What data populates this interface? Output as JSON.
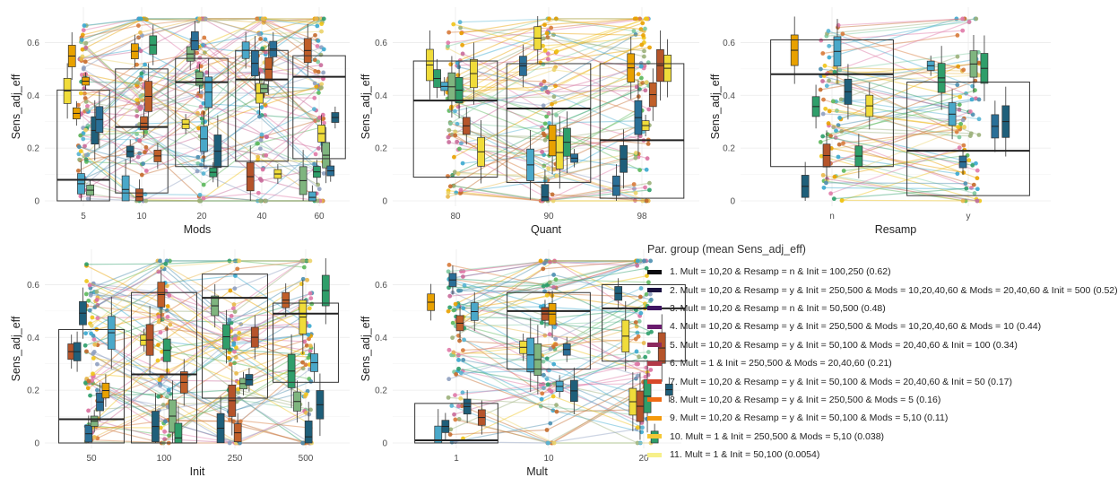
{
  "chart_data": [
    {
      "type": "boxplot-with-lines",
      "xlabel": "Mods",
      "ylabel": "Sens_adj_eff",
      "categories": [
        "5",
        "10",
        "20",
        "40",
        "60"
      ],
      "ylim": [
        0,
        0.7
      ],
      "yticks": [
        0,
        0.2,
        0.4,
        0.6
      ],
      "overall_boxes": [
        {
          "x": "5",
          "q1": 0.0,
          "median": 0.08,
          "q3": 0.42
        },
        {
          "x": "10",
          "q1": 0.03,
          "median": 0.28,
          "q3": 0.5
        },
        {
          "x": "20",
          "q1": 0.13,
          "median": 0.45,
          "q3": 0.54
        },
        {
          "x": "40",
          "q1": 0.15,
          "median": 0.46,
          "q3": 0.57
        },
        {
          "x": "60",
          "q1": 0.16,
          "median": 0.47,
          "q3": 0.55
        }
      ]
    },
    {
      "type": "boxplot-with-lines",
      "xlabel": "Quant",
      "ylabel": "Sens_adj_eff",
      "categories": [
        "80",
        "90",
        "98"
      ],
      "ylim": [
        0,
        0.7
      ],
      "yticks": [
        0,
        0.2,
        0.4,
        0.6
      ],
      "overall_boxes": [
        {
          "x": "80",
          "q1": 0.09,
          "median": 0.38,
          "q3": 0.53
        },
        {
          "x": "90",
          "q1": 0.07,
          "median": 0.35,
          "q3": 0.52
        },
        {
          "x": "98",
          "q1": 0.01,
          "median": 0.23,
          "q3": 0.52
        }
      ]
    },
    {
      "type": "boxplot-with-lines",
      "xlabel": "Resamp",
      "ylabel": "Sens_adj_eff",
      "categories": [
        "n",
        "y"
      ],
      "ylim": [
        0,
        0.7
      ],
      "yticks": [
        0,
        0.2,
        0.4,
        0.6
      ],
      "overall_boxes": [
        {
          "x": "n",
          "q1": 0.13,
          "median": 0.48,
          "q3": 0.61
        },
        {
          "x": "y",
          "q1": 0.02,
          "median": 0.19,
          "q3": 0.45
        }
      ]
    },
    {
      "type": "boxplot-with-lines",
      "xlabel": "Init",
      "ylabel": "Sens_adj_eff",
      "categories": [
        "50",
        "100",
        "250",
        "500"
      ],
      "ylim": [
        0,
        0.7
      ],
      "yticks": [
        0,
        0.2,
        0.4,
        0.6
      ],
      "overall_boxes": [
        {
          "x": "50",
          "q1": 0.0,
          "median": 0.09,
          "q3": 0.43
        },
        {
          "x": "100",
          "q1": 0.0,
          "median": 0.26,
          "q3": 0.57
        },
        {
          "x": "250",
          "q1": 0.17,
          "median": 0.55,
          "q3": 0.64
        },
        {
          "x": "500",
          "q1": 0.23,
          "median": 0.49,
          "q3": 0.53
        }
      ]
    },
    {
      "type": "boxplot-with-lines",
      "xlabel": "Mult",
      "ylabel": "Sens_adj_eff",
      "categories": [
        "1",
        "10",
        "20"
      ],
      "ylim": [
        0,
        0.7
      ],
      "yticks": [
        0,
        0.2,
        0.4,
        0.6
      ],
      "overall_boxes": [
        {
          "x": "1",
          "q1": 0.0,
          "median": 0.01,
          "q3": 0.15
        },
        {
          "x": "10",
          "q1": 0.28,
          "median": 0.5,
          "q3": 0.57
        },
        {
          "x": "20",
          "q1": 0.31,
          "median": 0.51,
          "q3": 0.6
        }
      ]
    }
  ],
  "legend": {
    "title": "Par. group (mean Sens_adj_eff)",
    "items": [
      {
        "label": "1. Mult = 10,20 & Resamp = n & Init = 100,250 (0.62)",
        "color": "#0a0a0f",
        "mean": 0.62
      },
      {
        "label": "2. Mult = 10,20 & Resamp = y & Init = 250,500 & Mods = 10,20,40,60 & Mods = 20,40,60 & Init = 500 (0.52)",
        "color": "#1b1240",
        "mean": 0.52
      },
      {
        "label": "3. Mult = 10,20 & Resamp = n & Init = 50,500 (0.48)",
        "color": "#3f1663",
        "mean": 0.48
      },
      {
        "label": "4. Mult = 10,20 & Resamp = y & Init = 250,500 & Mods = 10,20,40,60 & Mods = 10 (0.44)",
        "color": "#6a1c6e",
        "mean": 0.44
      },
      {
        "label": "5. Mult = 10,20 & Resamp = y & Init = 50,100 & Mods = 20,40,60 & Init = 100 (0.34)",
        "color": "#8c2a5e",
        "mean": 0.34
      },
      {
        "label": "6. Mult = 1 & Init = 250,500 & Mods = 20,40,60 (0.21)",
        "color": "#b23a48",
        "mean": 0.21
      },
      {
        "label": "7. Mult = 10,20 & Resamp = y & Init = 50,100 & Mods = 20,40,60 & Init = 50 (0.17)",
        "color": "#d8492a",
        "mean": 0.17
      },
      {
        "label": "8. Mult = 10,20 & Resamp = y & Init = 250,500 & Mods = 5 (0.16)",
        "color": "#ef6b14",
        "mean": 0.16
      },
      {
        "label": "9. Mult = 10,20 & Resamp = y & Init = 50,100 & Mods = 5,10 (0.11)",
        "color": "#f49a0c",
        "mean": 0.11
      },
      {
        "label": "10. Mult = 1 & Init = 250,500 & Mods = 5,10 (0.038)",
        "color": "#f5c836",
        "mean": 0.038
      },
      {
        "label": "11. Mult = 1 & Init = 50,100 (0.0054)",
        "color": "#f7f08a",
        "mean": 0.0054
      }
    ]
  }
}
